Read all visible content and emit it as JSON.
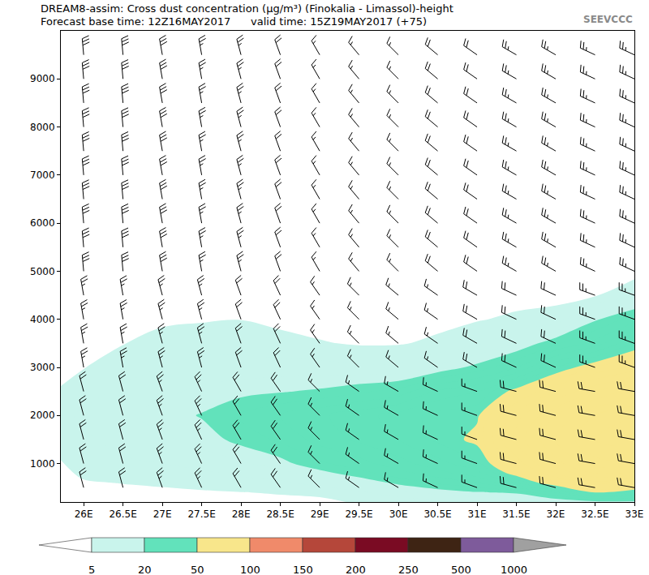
{
  "chart_data": {
    "type": "contour",
    "title": "DREAM8-assim: Cross dust concentration (μg/m³) (Finokalia - Limassol)-height",
    "subtitle": "Forecast base time: 12Z16MAY2017      valid time: 15Z19MAY2017 (+75)",
    "annotations": [
      "SEEVCCC"
    ],
    "x": [
      25.5,
      26,
      26.5,
      27,
      27.5,
      28,
      28.5,
      29,
      29.5,
      30,
      30.5,
      31,
      31.5,
      32,
      32.5,
      33
    ],
    "y": [
      200,
      400,
      600,
      800,
      1000,
      1500,
      2000,
      2500,
      3000,
      3500,
      4000,
      4500,
      5000,
      6000,
      10000
    ],
    "z": [
      [
        1,
        1,
        2,
        2,
        3,
        5,
        7,
        4,
        2,
        1,
        0,
        0,
        0,
        0,
        0
      ],
      [
        2,
        3,
        4.5,
        6,
        7,
        9,
        11,
        8,
        4.8,
        2,
        1,
        0,
        0,
        0,
        0
      ],
      [
        2,
        3.5,
        5.2,
        7,
        9,
        12,
        14,
        11,
        8,
        4.8,
        2,
        1,
        0,
        0,
        0
      ],
      [
        3,
        4,
        5.8,
        8,
        10,
        14,
        17,
        14,
        10,
        7,
        4,
        2,
        1,
        0,
        0
      ],
      [
        3,
        4.5,
        6.5,
        9,
        12,
        17,
        20.5,
        16,
        12,
        8,
        4.5,
        2,
        1,
        0,
        0
      ],
      [
        3.5,
        4.9,
        8,
        11,
        14,
        22,
        26,
        18,
        12,
        8,
        4.9,
        2,
        1,
        0,
        0
      ],
      [
        4,
        5.3,
        9,
        13,
        18,
        26,
        30,
        19.5,
        12,
        7,
        3.5,
        2,
        1,
        0,
        0
      ],
      [
        4,
        6,
        12,
        18,
        24,
        32,
        34,
        21,
        12,
        5.4,
        3,
        2,
        1,
        0,
        0
      ],
      [
        5.5,
        9,
        16,
        23,
        28,
        36,
        38,
        24,
        11,
        4.5,
        3,
        2,
        1,
        0,
        0
      ],
      [
        7,
        13,
        21.5,
        28,
        33,
        40,
        42,
        27,
        11,
        4.6,
        3,
        2,
        1,
        0,
        0
      ],
      [
        8,
        17,
        26,
        33,
        38,
        46,
        47,
        36,
        16,
        6,
        3.5,
        2,
        1,
        0,
        0
      ],
      [
        10,
        19.5,
        30,
        38,
        44,
        52,
        49,
        40,
        22,
        9,
        4.6,
        2.5,
        1,
        0,
        0
      ],
      [
        12,
        21,
        40,
        54,
        62,
        72,
        68,
        53,
        30,
        15,
        6,
        3,
        1,
        0,
        0
      ],
      [
        15,
        30,
        58,
        70,
        78,
        85,
        80,
        65,
        45,
        24,
        7,
        3.5,
        1,
        0,
        0
      ],
      [
        17,
        50,
        68,
        80,
        88,
        95,
        90,
        75,
        55,
        32,
        19,
        4.5,
        2,
        0,
        0
      ],
      [
        18,
        45,
        62,
        78,
        90,
        98,
        95,
        82,
        62,
        45,
        28,
        9,
        3,
        1,
        0
      ]
    ],
    "xlim": [
      25.71,
      33
    ],
    "ylim": [
      200,
      10000
    ],
    "xticks": [
      {
        "value": 26,
        "label": "26E"
      },
      {
        "value": 26.5,
        "label": "26.5E"
      },
      {
        "value": 27,
        "label": "27E"
      },
      {
        "value": 27.5,
        "label": "27.5E"
      },
      {
        "value": 28,
        "label": "28E"
      },
      {
        "value": 28.5,
        "label": "28.5E"
      },
      {
        "value": 29,
        "label": "29E"
      },
      {
        "value": 29.5,
        "label": "29.5E"
      },
      {
        "value": 30,
        "label": "30E"
      },
      {
        "value": 30.5,
        "label": "30.5E"
      },
      {
        "value": 31,
        "label": "31E"
      },
      {
        "value": 31.5,
        "label": "31.5E"
      },
      {
        "value": 32,
        "label": "32E"
      },
      {
        "value": 32.5,
        "label": "32.5E"
      },
      {
        "value": 33,
        "label": "33E"
      }
    ],
    "yticks": [
      1000,
      2000,
      3000,
      4000,
      5000,
      6000,
      7000,
      8000,
      9000
    ],
    "grid": true,
    "colorbar": {
      "range": [
        0,
        1000
      ],
      "levels": [
        5,
        20,
        50,
        100,
        150,
        200,
        250,
        500,
        1000
      ],
      "colors": [
        "#ffffff",
        "#c9f4ec",
        "#62e2bb",
        "#f8e68b",
        "#f08a6a",
        "#b5473a",
        "#7a0b23",
        "#3e2414",
        "#7e5b9b",
        "#a0a0a0"
      ]
    },
    "wind": {
      "x": [
        26,
        26.5,
        27,
        27.5,
        28,
        28.5,
        29,
        29.5,
        30,
        30.5,
        31,
        31.5,
        32,
        32.5,
        33
      ],
      "y": [
        500,
        1000,
        1500,
        2000,
        2500,
        3000,
        3500,
        4000,
        4500,
        5000,
        5500,
        6000,
        6500,
        7000,
        7500,
        8000,
        8500,
        9000,
        9500
      ],
      "speed": [
        [
          20,
          20,
          25,
          25,
          20,
          20,
          15,
          15,
          15,
          15,
          15,
          20,
          20,
          20,
          20
        ],
        [
          20,
          20,
          25,
          25,
          20,
          20,
          15,
          15,
          15,
          15,
          15,
          20,
          20,
          20,
          20
        ],
        [
          20,
          20,
          25,
          25,
          20,
          20,
          15,
          15,
          15,
          15,
          15,
          20,
          20,
          20,
          20
        ],
        [
          20,
          20,
          25,
          25,
          20,
          20,
          15,
          15,
          15,
          15,
          15,
          20,
          20,
          20,
          20
        ],
        [
          20,
          20,
          25,
          25,
          20,
          20,
          15,
          15,
          15,
          15,
          15,
          20,
          20,
          20,
          20
        ],
        [
          25,
          25,
          25,
          25,
          20,
          20,
          15,
          15,
          15,
          15,
          20,
          20,
          20,
          25,
          25
        ],
        [
          25,
          25,
          25,
          25,
          20,
          20,
          15,
          15,
          15,
          15,
          20,
          20,
          20,
          25,
          25
        ],
        [
          25,
          25,
          25,
          25,
          20,
          20,
          15,
          15,
          15,
          15,
          20,
          20,
          20,
          25,
          25
        ],
        [
          25,
          25,
          25,
          25,
          20,
          20,
          15,
          15,
          15,
          15,
          20,
          20,
          20,
          25,
          25
        ],
        [
          30,
          30,
          30,
          25,
          25,
          20,
          15,
          15,
          15,
          20,
          20,
          25,
          25,
          25,
          25
        ],
        [
          30,
          30,
          30,
          25,
          25,
          20,
          15,
          15,
          15,
          20,
          20,
          25,
          25,
          25,
          25
        ],
        [
          30,
          30,
          30,
          25,
          25,
          20,
          15,
          15,
          15,
          20,
          20,
          25,
          25,
          25,
          25
        ],
        [
          30,
          30,
          30,
          25,
          25,
          20,
          15,
          15,
          15,
          20,
          20,
          25,
          25,
          25,
          25
        ],
        [
          30,
          30,
          30,
          25,
          25,
          20,
          15,
          15,
          15,
          20,
          20,
          25,
          25,
          25,
          25
        ],
        [
          30,
          30,
          30,
          25,
          25,
          20,
          15,
          15,
          15,
          20,
          20,
          25,
          25,
          25,
          25
        ],
        [
          30,
          30,
          30,
          25,
          25,
          20,
          15,
          15,
          15,
          20,
          20,
          25,
          25,
          25,
          25
        ],
        [
          30,
          30,
          30,
          25,
          25,
          20,
          15,
          15,
          15,
          20,
          20,
          25,
          25,
          25,
          25
        ],
        [
          30,
          30,
          30,
          25,
          25,
          20,
          15,
          15,
          15,
          20,
          20,
          25,
          25,
          25,
          25
        ],
        [
          30,
          30,
          30,
          25,
          25,
          20,
          15,
          15,
          15,
          20,
          20,
          25,
          25,
          25,
          25
        ]
      ],
      "direction": [
        [
          345,
          345,
          340,
          335,
          330,
          325,
          315,
          305,
          300,
          295,
          290,
          285,
          285,
          280,
          280
        ],
        [
          345,
          345,
          340,
          335,
          330,
          325,
          315,
          305,
          300,
          295,
          290,
          285,
          285,
          280,
          280
        ],
        [
          345,
          345,
          340,
          335,
          330,
          325,
          315,
          305,
          300,
          295,
          290,
          285,
          285,
          280,
          280
        ],
        [
          345,
          345,
          340,
          335,
          330,
          325,
          315,
          305,
          300,
          295,
          290,
          285,
          285,
          280,
          280
        ],
        [
          345,
          345,
          340,
          335,
          330,
          325,
          315,
          305,
          300,
          295,
          290,
          285,
          285,
          280,
          280
        ],
        [
          350,
          350,
          345,
          345,
          340,
          335,
          325,
          315,
          310,
          305,
          300,
          295,
          295,
          290,
          290
        ],
        [
          350,
          350,
          345,
          345,
          340,
          335,
          325,
          315,
          310,
          305,
          300,
          295,
          295,
          290,
          290
        ],
        [
          350,
          350,
          345,
          345,
          340,
          335,
          325,
          315,
          310,
          305,
          300,
          295,
          295,
          290,
          290
        ],
        [
          350,
          350,
          345,
          345,
          340,
          335,
          325,
          315,
          310,
          305,
          300,
          295,
          295,
          290,
          290
        ],
        [
          355,
          355,
          350,
          350,
          345,
          340,
          330,
          320,
          315,
          310,
          305,
          300,
          300,
          295,
          295
        ],
        [
          355,
          355,
          350,
          350,
          345,
          340,
          330,
          320,
          315,
          310,
          305,
          300,
          300,
          295,
          295
        ],
        [
          355,
          355,
          350,
          350,
          345,
          340,
          330,
          320,
          315,
          310,
          305,
          300,
          300,
          295,
          295
        ],
        [
          355,
          355,
          350,
          350,
          345,
          340,
          330,
          320,
          315,
          310,
          305,
          300,
          300,
          295,
          295
        ],
        [
          355,
          355,
          350,
          350,
          345,
          340,
          330,
          320,
          315,
          310,
          305,
          300,
          300,
          295,
          295
        ],
        [
          355,
          355,
          350,
          350,
          345,
          340,
          330,
          320,
          315,
          310,
          305,
          300,
          300,
          295,
          295
        ],
        [
          355,
          355,
          350,
          350,
          345,
          340,
          330,
          320,
          315,
          310,
          305,
          300,
          300,
          295,
          295
        ],
        [
          355,
          355,
          350,
          350,
          345,
          340,
          330,
          320,
          315,
          310,
          305,
          300,
          300,
          295,
          295
        ],
        [
          355,
          355,
          350,
          350,
          345,
          340,
          330,
          320,
          315,
          310,
          305,
          300,
          300,
          295,
          295
        ],
        [
          355,
          355,
          350,
          350,
          345,
          340,
          330,
          320,
          315,
          310,
          305,
          300,
          300,
          295,
          295
        ]
      ]
    }
  }
}
